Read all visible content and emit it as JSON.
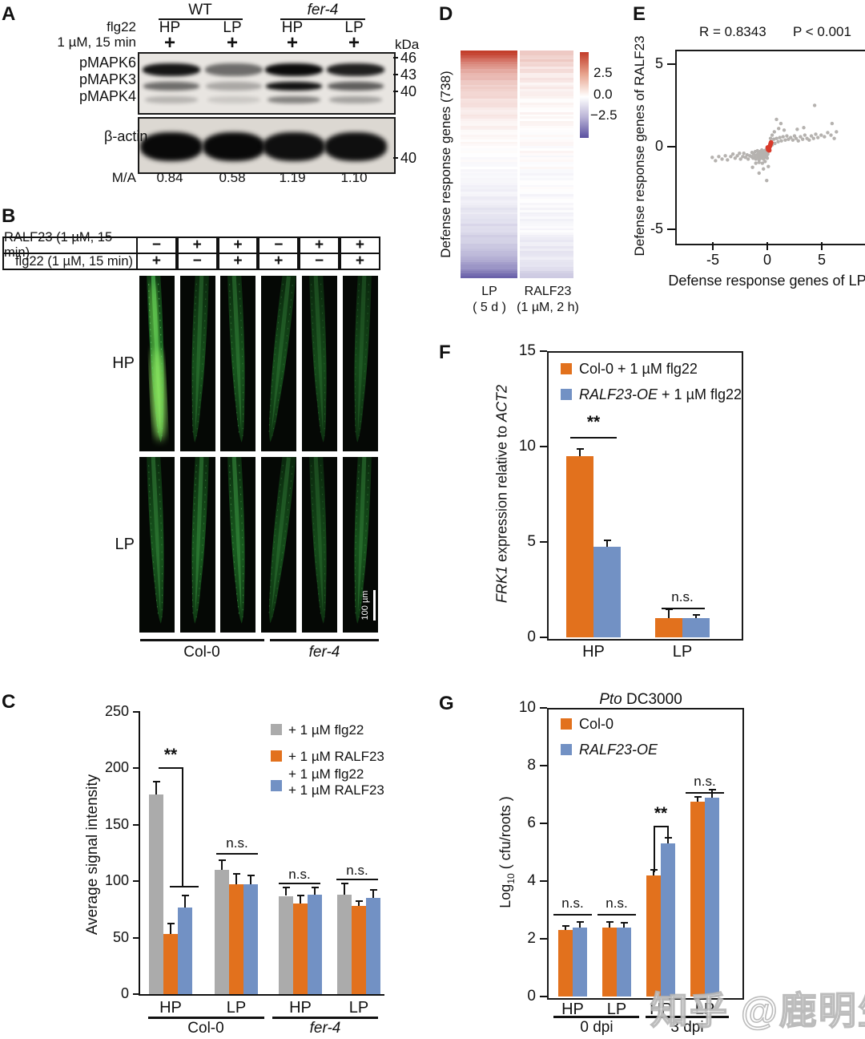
{
  "watermark": "知乎 @鹿明生物",
  "colors": {
    "orange": "#E2711D",
    "blue": "#7291C4",
    "gray": "#ABABAB",
    "heat_red": "#C23B28",
    "heat_purple": "#5A50A0",
    "root_green": "#2F9E3F",
    "scatter_gray": "#B5B2AF",
    "scatter_red": "#D93A2B"
  },
  "panelA": {
    "label": "A",
    "group1": "WT",
    "group2": "fer-4",
    "cols": [
      "HP",
      "LP",
      "HP",
      "LP"
    ],
    "treat1": "flg22",
    "treat2": "1 µM, 15 min",
    "plus": "+",
    "kda": "kDa",
    "rows": [
      {
        "name": "pMAPK6",
        "mw": "46",
        "intensities": [
          0.95,
          0.55,
          1.0,
          0.9
        ]
      },
      {
        "name": "pMAPK3",
        "mw": "43",
        "intensities": [
          0.55,
          0.28,
          0.97,
          0.62
        ]
      },
      {
        "name": "pMAPK4",
        "mw": "40",
        "intensities": [
          0.22,
          0.13,
          0.45,
          0.3
        ]
      }
    ],
    "actin": {
      "name": "β-actin",
      "mw": "40",
      "intensities": [
        1,
        1,
        0.97,
        0.97
      ]
    },
    "ma_label": "M/A",
    "ma_values": [
      "0.84",
      "0.58",
      "1.19",
      "1.10"
    ]
  },
  "panelB": {
    "label": "B",
    "treatments": [
      {
        "name": "RALF23 (1 µM, 15 min)",
        "signs": [
          "−",
          "+",
          "+",
          "−",
          "+",
          "+"
        ]
      },
      {
        "name": "flg22 (1 µM, 15 min)",
        "signs": [
          "+",
          "−",
          "+",
          "+",
          "−",
          "+"
        ]
      }
    ],
    "row_labels": [
      "HP",
      "LP"
    ],
    "group_labels": [
      "Col-0",
      "fer-4"
    ],
    "scalebar": "100 µm",
    "brightness": {
      "HP": [
        1.0,
        0.42,
        0.48,
        0.36,
        0.3,
        0.26
      ],
      "LP": [
        0.52,
        0.56,
        0.62,
        0.36,
        0.3,
        0.46
      ]
    }
  },
  "chart_data": [
    {
      "id": "C",
      "type": "bar",
      "title": "",
      "ylabel": "Average signal intensity",
      "ylim": [
        0,
        250
      ],
      "yticks": [
        0,
        50,
        100,
        150,
        200,
        250
      ],
      "categories": [
        "HP",
        "LP",
        "HP",
        "LP"
      ],
      "group_labels": [
        "Col-0",
        "fer-4"
      ],
      "series": [
        {
          "name": "+ 1 µM flg22",
          "color": "#ABABAB",
          "values": [
            177,
            110,
            87,
            88
          ],
          "errors": [
            11,
            8,
            7,
            10
          ]
        },
        {
          "name": "+ 1 µM RALF23",
          "color": "#E2711D",
          "values": [
            53,
            97,
            80,
            78
          ],
          "errors": [
            9,
            9,
            7,
            4
          ]
        },
        {
          "name": "+ 1 µM flg22 + 1 µM RALF23",
          "color": "#7291C4",
          "values": [
            77,
            97,
            88,
            85
          ],
          "errors": [
            10,
            8,
            6,
            7
          ]
        }
      ],
      "legend_line1": "+ 1 µM flg22",
      "legend_line2": "+ 1 µM RALF23",
      "legend_line3a": "+ 1 µM flg22",
      "legend_line3b": "+ 1 µM RALF23",
      "annotations": [
        "**",
        "n.s.",
        "n.s.",
        "n.s."
      ]
    },
    {
      "id": "D",
      "type": "heatmap",
      "ylabel": "Defense response genes (738)",
      "columns": [
        {
          "l1": "LP",
          "l2": "( 5 d )"
        },
        {
          "l1": "RALF23",
          "l2": "(1 µM, 2 h)"
        }
      ],
      "colorbar_ticks": [
        "2.5",
        "0.0",
        "−2.5"
      ],
      "rows": 100,
      "col1_profile": [
        [
          0,
          3.0
        ],
        [
          0.02,
          2.6
        ],
        [
          0.05,
          1.8
        ],
        [
          0.1,
          1.1
        ],
        [
          0.18,
          0.6
        ],
        [
          0.3,
          0.25
        ],
        [
          0.42,
          0.05
        ],
        [
          0.5,
          -0.05
        ],
        [
          0.6,
          -0.2
        ],
        [
          0.72,
          -0.45
        ],
        [
          0.82,
          -0.75
        ],
        [
          0.9,
          -1.1
        ],
        [
          0.96,
          -1.9
        ],
        [
          1,
          -2.6
        ]
      ],
      "col2_scale": 0.32
    },
    {
      "id": "E",
      "type": "scatter",
      "stats_r": "R = 0.8343",
      "stats_p": "P < 0.001",
      "xlabel": "Defense response genes of LP",
      "ylabel": "Defense response genes of RALF23",
      "xticks": [
        -5,
        0,
        5
      ],
      "yticks": [
        5,
        0,
        -5
      ],
      "xlim": [
        -8.45,
        8.8
      ],
      "ylim": [
        -5.8,
        5.9
      ],
      "points": [
        [
          -5.2,
          -0.55
        ],
        [
          -4.9,
          -0.75
        ],
        [
          -4.6,
          -0.5
        ],
        [
          -4.3,
          -0.65
        ],
        [
          -4.0,
          -0.45
        ],
        [
          -3.8,
          -0.7
        ],
        [
          -3.5,
          -0.5
        ],
        [
          -3.3,
          -0.35
        ],
        [
          -3.1,
          -0.6
        ],
        [
          -2.9,
          -0.45
        ],
        [
          -2.7,
          -0.3
        ],
        [
          -2.6,
          -0.65
        ],
        [
          -2.4,
          -0.5
        ],
        [
          -2.3,
          -0.3
        ],
        [
          -2.15,
          -0.55
        ],
        [
          -2.0,
          -0.4
        ],
        [
          -1.9,
          -0.65
        ],
        [
          -1.75,
          -0.45
        ],
        [
          -1.6,
          -0.5
        ],
        [
          -1.55,
          -0.25
        ],
        [
          -1.45,
          -0.6
        ],
        [
          -1.4,
          -0.35
        ],
        [
          -1.3,
          -0.5
        ],
        [
          -1.25,
          -0.2
        ],
        [
          -1.2,
          -0.65
        ],
        [
          -1.1,
          -0.4
        ],
        [
          -1.05,
          -0.15
        ],
        [
          -1.0,
          -0.55
        ],
        [
          -0.95,
          -0.3
        ],
        [
          -0.9,
          -0.7
        ],
        [
          -0.85,
          -0.45
        ],
        [
          -0.8,
          -0.2
        ],
        [
          -0.75,
          -0.6
        ],
        [
          -0.7,
          -0.35
        ],
        [
          -0.65,
          -0.1
        ],
        [
          -0.6,
          -0.5
        ],
        [
          -0.55,
          -0.25
        ],
        [
          -0.5,
          -0.65
        ],
        [
          -0.45,
          -0.4
        ],
        [
          -0.4,
          -0.15
        ],
        [
          -0.35,
          -0.55
        ],
        [
          -0.3,
          -0.3
        ],
        [
          -0.25,
          -0.08
        ],
        [
          -0.2,
          -0.45
        ],
        [
          -0.15,
          -0.2
        ],
        [
          -0.1,
          -0.35
        ],
        [
          -0.05,
          -0.1
        ],
        [
          -0.9,
          -0.85
        ],
        [
          -0.6,
          -0.9
        ],
        [
          -0.35,
          -0.8
        ],
        [
          -1.2,
          -0.9
        ],
        [
          -0.15,
          -0.6
        ],
        [
          -0.5,
          -1.25
        ],
        [
          -0.9,
          -1.5
        ],
        [
          -0.2,
          -1.95
        ],
        [
          -0.05,
          -1.1
        ],
        [
          -1.5,
          -1.15
        ],
        [
          0.1,
          0.15
        ],
        [
          0.2,
          0.4
        ],
        [
          0.3,
          0.2
        ],
        [
          0.45,
          0.55
        ],
        [
          0.55,
          0.3
        ],
        [
          0.7,
          0.6
        ],
        [
          0.85,
          0.4
        ],
        [
          1.0,
          0.65
        ],
        [
          1.15,
          0.45
        ],
        [
          1.3,
          0.7
        ],
        [
          1.5,
          0.5
        ],
        [
          1.65,
          0.75
        ],
        [
          1.8,
          0.55
        ],
        [
          2.0,
          0.65
        ],
        [
          2.2,
          0.5
        ],
        [
          2.35,
          0.75
        ],
        [
          2.5,
          0.6
        ],
        [
          2.7,
          0.45
        ],
        [
          2.9,
          0.7
        ],
        [
          3.1,
          0.55
        ],
        [
          3.3,
          0.8
        ],
        [
          3.5,
          0.6
        ],
        [
          3.7,
          0.5
        ],
        [
          3.9,
          0.75
        ],
        [
          4.1,
          0.6
        ],
        [
          4.3,
          0.85
        ],
        [
          4.5,
          0.65
        ],
        [
          4.8,
          0.8
        ],
        [
          5.1,
          0.7
        ],
        [
          5.4,
          0.95
        ],
        [
          5.7,
          0.8
        ],
        [
          6.0,
          0.6
        ],
        [
          0.5,
          1.0
        ],
        [
          0.9,
          1.2
        ],
        [
          1.4,
          1.1
        ],
        [
          2.6,
          1.15
        ],
        [
          3.2,
          1.25
        ],
        [
          1.1,
          1.5
        ],
        [
          0.7,
          1.75
        ],
        [
          4.2,
          2.6
        ],
        [
          5.8,
          1.5
        ],
        [
          6.2,
          1.0
        ],
        [
          0.3,
          0.8
        ],
        [
          0.15,
          0.6
        ]
      ],
      "red_points": [
        [
          0,
          0
        ],
        [
          0.08,
          0.12
        ],
        [
          -0.06,
          -0.08
        ],
        [
          0.15,
          0.25
        ],
        [
          0.03,
          -0.12
        ],
        [
          0.2,
          0.35
        ],
        [
          -0.1,
          0.05
        ]
      ]
    },
    {
      "id": "F",
      "type": "bar",
      "ylabel_parts": [
        "FRK1",
        " expression relative to ",
        "ACT2"
      ],
      "ylim": [
        0,
        15
      ],
      "yticks": [
        0,
        5,
        10,
        15
      ],
      "categories": [
        "HP",
        "LP"
      ],
      "series": [
        {
          "name": "Col-0 + 1 µM flg22",
          "color": "#E2711D",
          "values": [
            9.5,
            1.0
          ],
          "errors": [
            0.35,
            0.45
          ]
        },
        {
          "name": "RALF23-OE + 1 µM flg22",
          "color": "#7291C4",
          "values": [
            4.75,
            1.0
          ],
          "errors": [
            0.3,
            0.15
          ]
        }
      ],
      "legend1": "Col-0 + 1 µM flg22",
      "legend2a": "RALF23-OE",
      "legend2b": " + 1 µM flg22",
      "annotations": [
        "**",
        "n.s."
      ]
    },
    {
      "id": "G",
      "type": "bar",
      "title_parts": [
        "Pto",
        " DC3000"
      ],
      "ylabel_parts": [
        "Log",
        "10",
        " ( cfu/roots )"
      ],
      "ylim": [
        0,
        10
      ],
      "yticks": [
        0,
        2,
        4,
        6,
        8,
        10
      ],
      "categories": [
        "HP",
        "LP",
        "HP",
        "LP"
      ],
      "group_labels": [
        "0 dpi",
        "3 dpi"
      ],
      "series": [
        {
          "name": "Col-0",
          "color": "#E2711D",
          "values": [
            2.3,
            2.4,
            4.2,
            6.75
          ],
          "errors": [
            0.12,
            0.18,
            0.18,
            0.15
          ]
        },
        {
          "name": "RALF23-OE",
          "color": "#7291C4",
          "values": [
            2.4,
            2.4,
            5.3,
            6.9
          ],
          "errors": [
            0.18,
            0.15,
            0.18,
            0.25
          ]
        }
      ],
      "legend1": "Col-0",
      "legend2": "RALF23-OE",
      "annotations": [
        "n.s.",
        "n.s.",
        "**",
        "n.s."
      ]
    }
  ]
}
